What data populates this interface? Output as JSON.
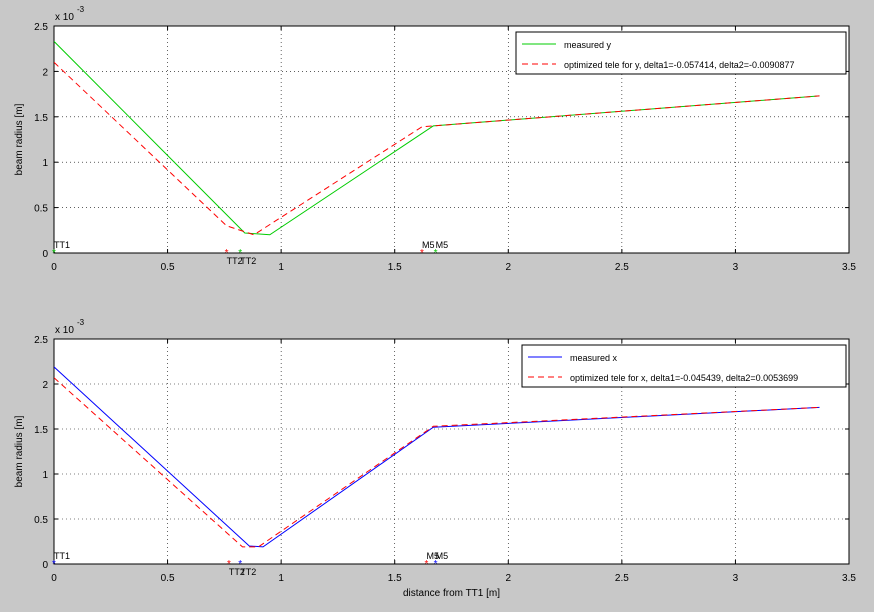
{
  "chart_data": [
    {
      "type": "line",
      "title": "",
      "xlabel": "",
      "ylabel": "beam radius [m]",
      "y_exponent_label": "x 10",
      "y_exponent": "-3",
      "xlim": [
        0,
        3.5
      ],
      "ylim": [
        0,
        2.5
      ],
      "xticks": [
        "0",
        "0.5",
        "1",
        "1.5",
        "2",
        "2.5",
        "3",
        "3.5"
      ],
      "yticks": [
        "0",
        "0.5",
        "1",
        "1.5",
        "2",
        "2.5"
      ],
      "grid": true,
      "legend_position": "top-right",
      "colors": {
        "measured": "#00cc00",
        "optimized": "#ff0000"
      },
      "series": [
        {
          "name": "measured y",
          "style": "solid",
          "x": [
            0,
            0.84,
            0.95,
            1.67,
            3.37
          ],
          "y": [
            2.33,
            0.22,
            0.2,
            1.4,
            1.73
          ]
        },
        {
          "name": "optimized tele for y, delta1=-0.057414, delta2=-0.0090877",
          "style": "dashed",
          "x": [
            0,
            0.76,
            0.88,
            1.62,
            1.67,
            3.37
          ],
          "y": [
            2.1,
            0.3,
            0.2,
            1.39,
            1.4,
            1.73
          ]
        }
      ],
      "markers": [
        {
          "label": "TT1",
          "x": 0,
          "color": "#00cc00"
        },
        {
          "label": "TT2",
          "x": 0.76,
          "color": "#ff0000"
        },
        {
          "label": "TT2",
          "x": 0.82,
          "color": "#00cc00"
        },
        {
          "label": "M5",
          "x": 1.62,
          "color": "#ff0000"
        },
        {
          "label": "M5",
          "x": 1.68,
          "color": "#00cc00"
        }
      ]
    },
    {
      "type": "line",
      "title": "",
      "xlabel": "distance from TT1 [m]",
      "ylabel": "beam radius [m]",
      "y_exponent_label": "x 10",
      "y_exponent": "-3",
      "xlim": [
        0,
        3.5
      ],
      "ylim": [
        0,
        2.5
      ],
      "xticks": [
        "0",
        "0.5",
        "1",
        "1.5",
        "2",
        "2.5",
        "3",
        "3.5"
      ],
      "yticks": [
        "0",
        "0.5",
        "1",
        "1.5",
        "2",
        "2.5"
      ],
      "grid": true,
      "legend_position": "top-right",
      "colors": {
        "measured": "#0000ff",
        "optimized": "#ff0000"
      },
      "series": [
        {
          "name": "measured x",
          "style": "solid",
          "x": [
            0,
            0.86,
            0.92,
            1.67,
            3.37
          ],
          "y": [
            2.19,
            0.2,
            0.19,
            1.52,
            1.74
          ]
        },
        {
          "name": "optimized tele for x, delta1=-0.045439, delta2=0.0053699",
          "style": "dashed",
          "x": [
            0,
            0.83,
            0.9,
            1.67,
            3.37
          ],
          "y": [
            2.07,
            0.19,
            0.19,
            1.53,
            1.74
          ]
        }
      ],
      "markers": [
        {
          "label": "TT1",
          "x": 0,
          "color": "#0000ff"
        },
        {
          "label": "TT2",
          "x": 0.77,
          "color": "#ff0000"
        },
        {
          "label": "TT2",
          "x": 0.82,
          "color": "#0000ff"
        },
        {
          "label": "M5",
          "x": 1.64,
          "color": "#ff0000"
        },
        {
          "label": "M5",
          "x": 1.68,
          "color": "#0000ff"
        }
      ]
    }
  ]
}
